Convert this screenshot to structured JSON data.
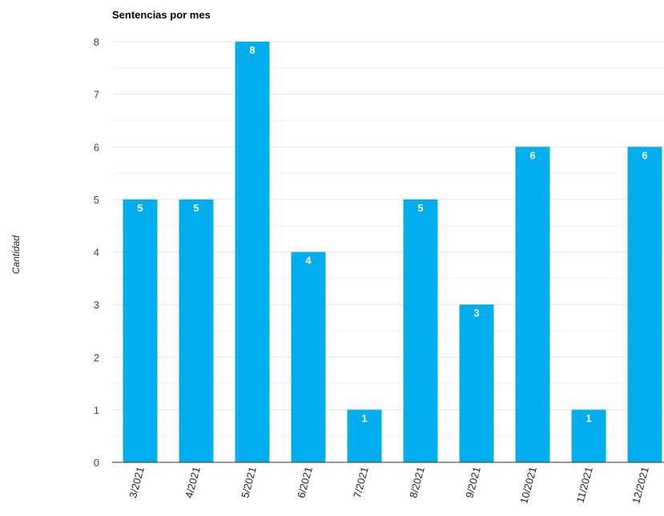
{
  "chart_data": {
    "type": "bar",
    "title": "Sentencias por mes",
    "xlabel": "",
    "ylabel": "Cantidad",
    "categories": [
      "3/2021",
      "4/2021",
      "5/2021",
      "6/2021",
      "7/2021",
      "8/2021",
      "9/2021",
      "10/2021",
      "11/2021",
      "12/2021"
    ],
    "values": [
      5,
      5,
      8,
      4,
      1,
      5,
      3,
      6,
      1,
      6
    ],
    "ylim": [
      0,
      8
    ],
    "yticks": [
      0,
      1,
      2,
      3,
      4,
      5,
      6,
      7,
      8
    ],
    "grid": true,
    "bar_color": "#03aeef",
    "gridline_color": "#e3e3e3",
    "minor_gridline_color": "#f0f0f0"
  }
}
